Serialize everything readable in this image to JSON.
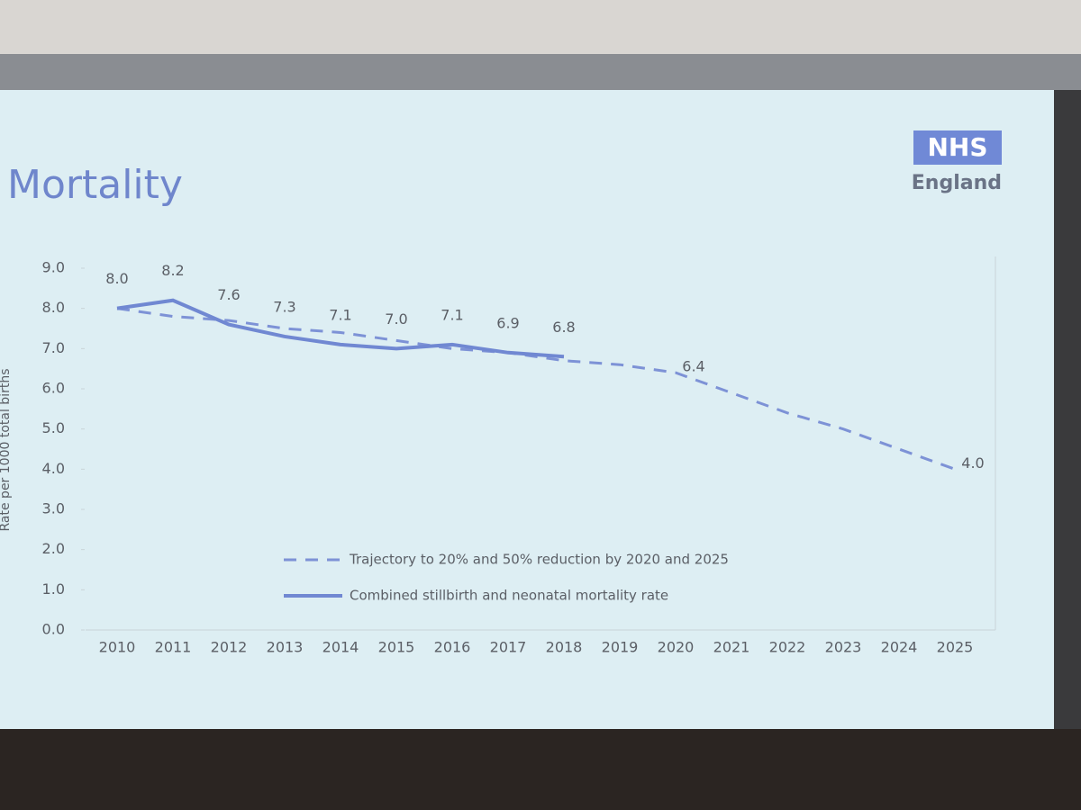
{
  "chart_data": {
    "type": "line",
    "title": "Mortality",
    "logo": "NHS",
    "logo_subtitle": "England",
    "y_label": "Rate per 1000 total births",
    "x": [
      2010,
      2011,
      2012,
      2013,
      2014,
      2015,
      2016,
      2017,
      2018,
      2019,
      2020,
      2021,
      2022,
      2023,
      2024,
      2025
    ],
    "xlim": [
      2010,
      2025
    ],
    "xticks": [
      2010,
      2011,
      2012,
      2013,
      2014,
      2015,
      2016,
      2017,
      2018,
      2019,
      2020,
      2021,
      2022,
      2023,
      2024,
      2025
    ],
    "ylim": [
      0,
      9
    ],
    "yticks": [
      {
        "value": 0,
        "label": "0.0"
      },
      {
        "value": 1,
        "label": "1.0"
      },
      {
        "value": 2,
        "label": "2.0"
      },
      {
        "value": 3,
        "label": "3.0"
      },
      {
        "value": 4,
        "label": "4.0"
      },
      {
        "value": 5,
        "label": "5.0"
      },
      {
        "value": 6,
        "label": "6.0"
      },
      {
        "value": 7,
        "label": "7.0"
      },
      {
        "value": 8,
        "label": "8.0"
      },
      {
        "value": 9,
        "label": "9.0"
      }
    ],
    "grid": false,
    "legend": "bottom",
    "series": [
      {
        "name": "Trajectory to 20% and 50% reduction by 2020 and 2025",
        "color": "#7d92d6",
        "dashed": true,
        "values": [
          8.0,
          7.8,
          7.7,
          7.5,
          7.4,
          7.2,
          7.0,
          6.9,
          6.7,
          6.6,
          6.4,
          5.9,
          5.4,
          5.0,
          4.5,
          4.0
        ],
        "value_labels": [
          null,
          null,
          null,
          null,
          null,
          null,
          null,
          null,
          null,
          null,
          "6.4",
          null,
          null,
          null,
          null,
          "4.0"
        ]
      },
      {
        "name": "Combined stillbirth and neonatal mortality rate",
        "color": "#7088d2",
        "dashed": false,
        "values": [
          8.0,
          8.2,
          7.6,
          7.3,
          7.1,
          7.0,
          7.1,
          6.9,
          6.8,
          null,
          null,
          null,
          null,
          null,
          null,
          null
        ],
        "value_labels": [
          "8.0",
          "8.2",
          "7.6",
          "7.3",
          "7.1",
          "7.0",
          "7.1",
          "6.9",
          "6.8",
          null,
          null,
          null,
          null,
          null,
          null,
          null
        ]
      }
    ]
  }
}
